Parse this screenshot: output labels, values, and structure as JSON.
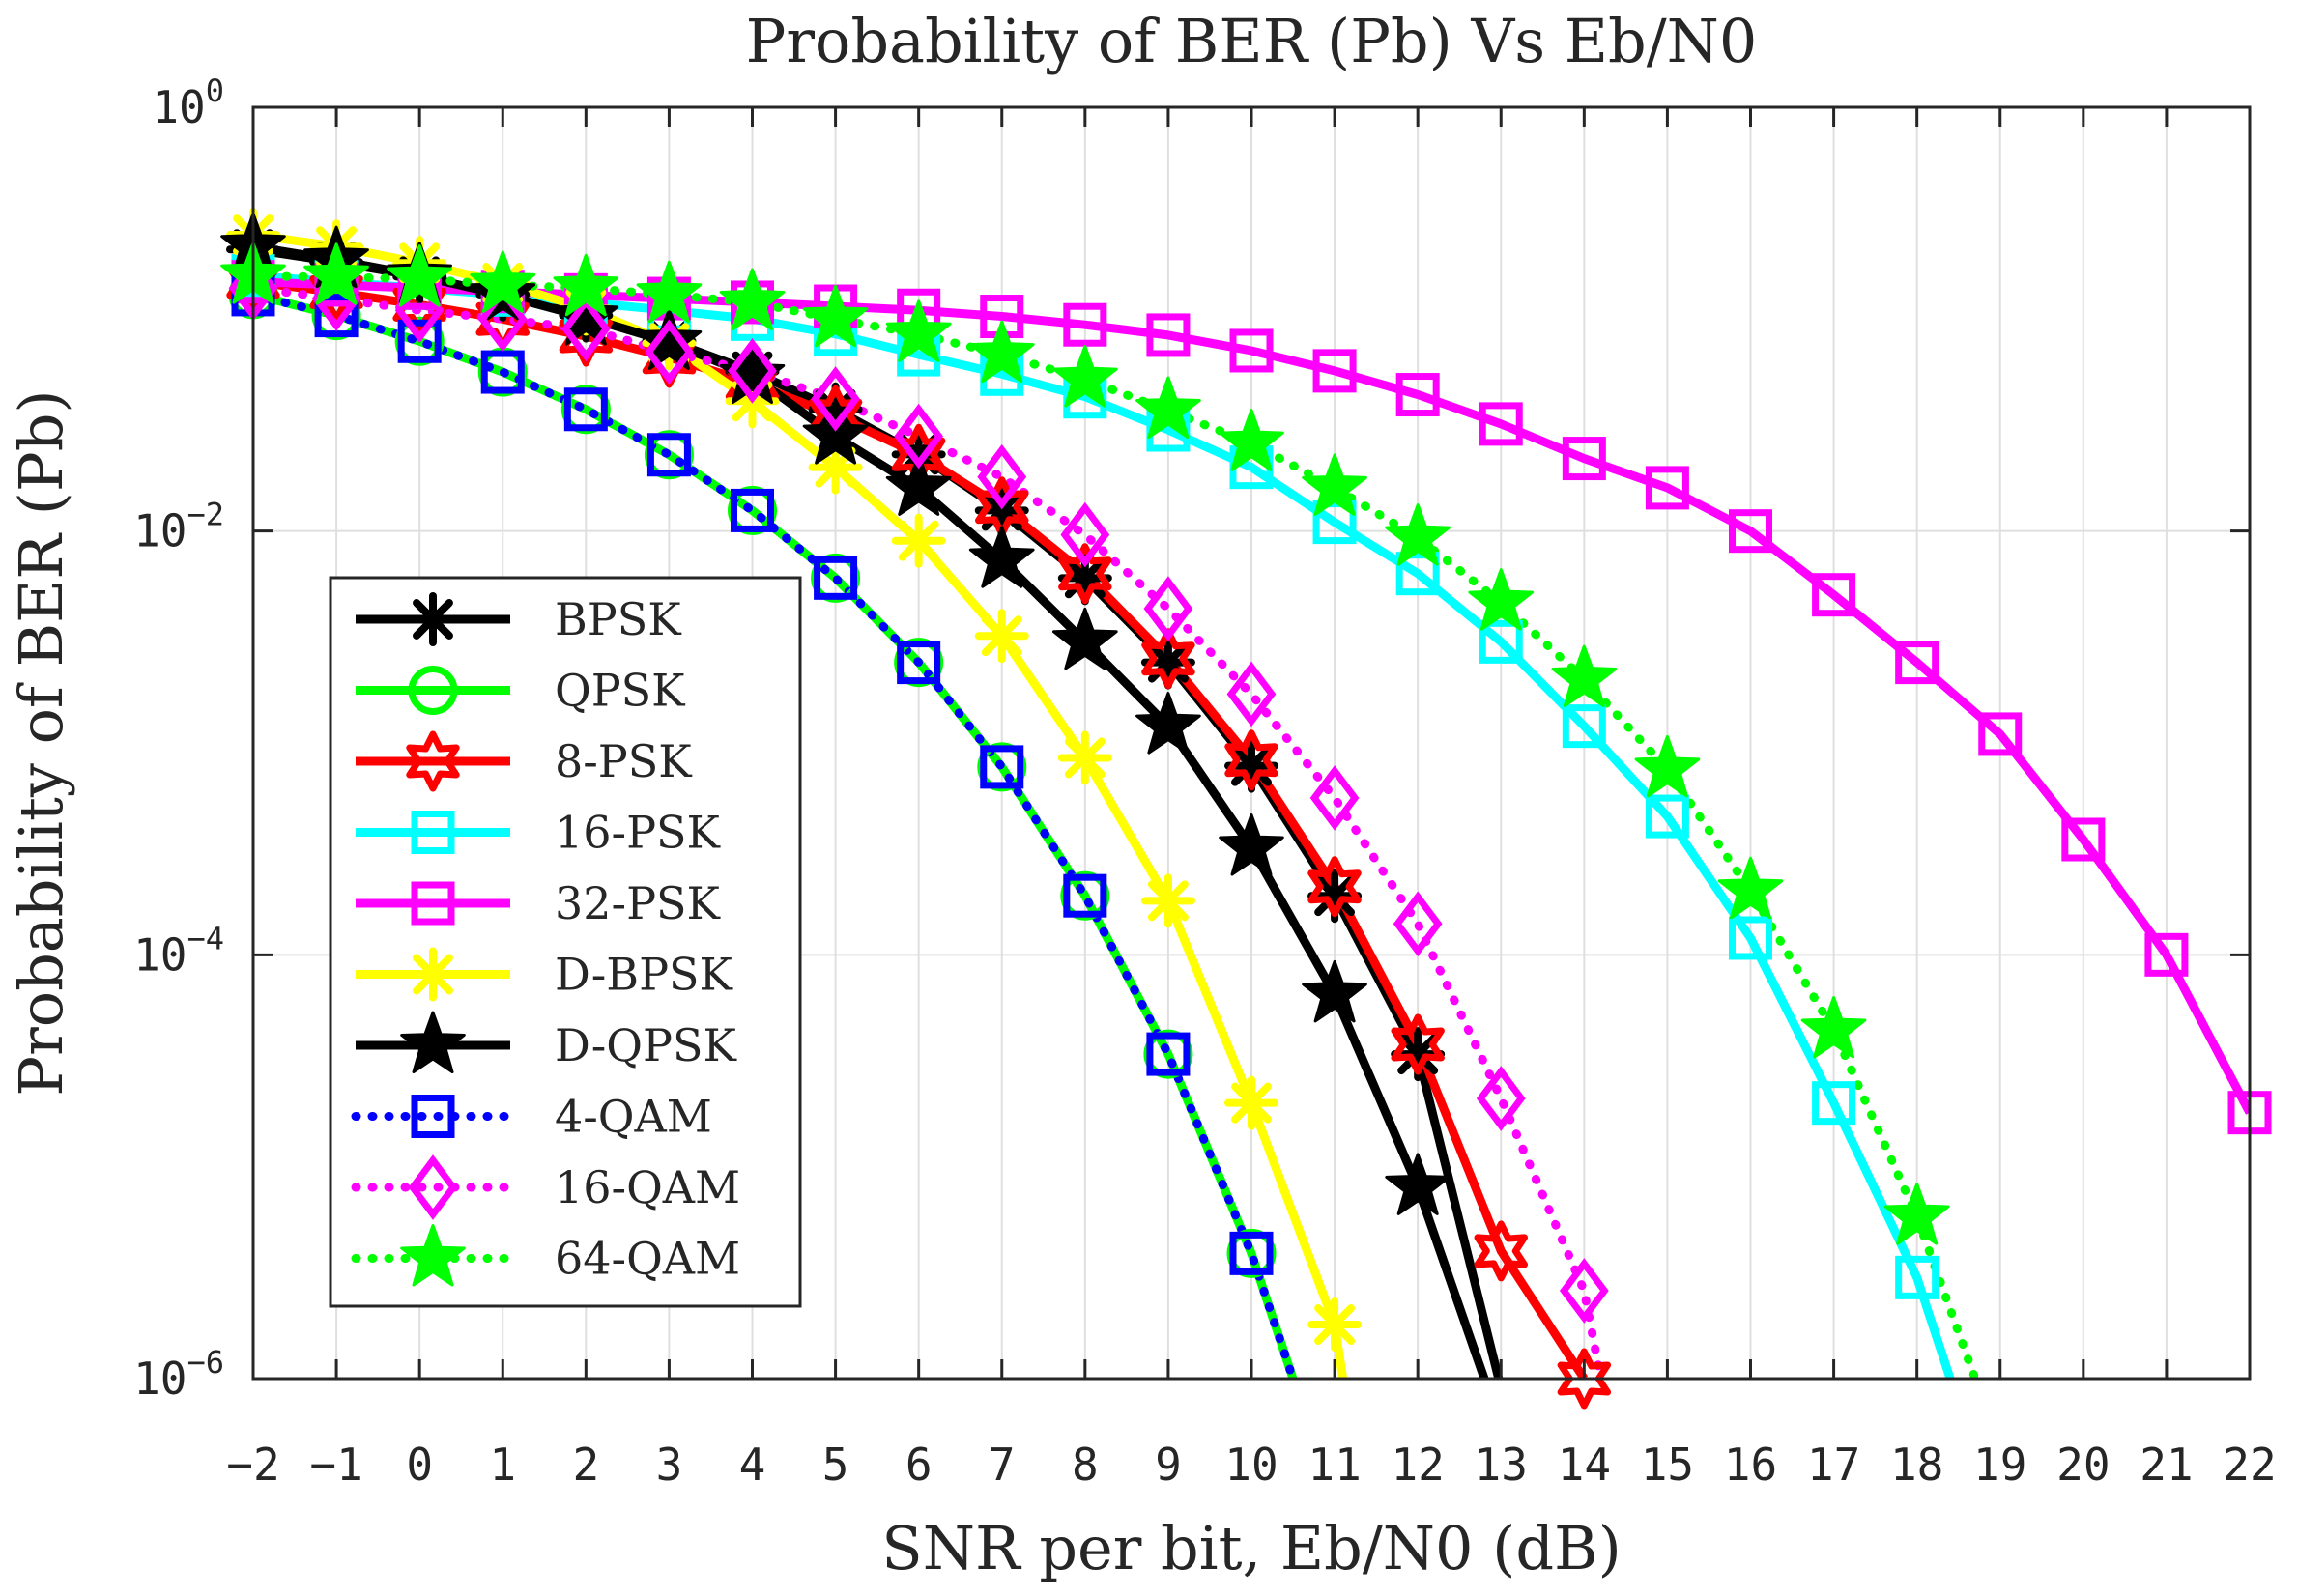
{
  "chart_data": {
    "type": "line",
    "title": "Probability of BER (Pb) Vs Eb/N0",
    "xlabel": "SNR per bit, Eb/N0 (dB)",
    "ylabel": "Probability of BER (Pb)",
    "xlim": [
      -2,
      22
    ],
    "ylim": [
      1e-06,
      1
    ],
    "yscale": "log",
    "grid": true,
    "xticks": [
      -2,
      -1,
      0,
      1,
      2,
      3,
      4,
      5,
      6,
      7,
      8,
      9,
      10,
      11,
      12,
      13,
      14,
      15,
      16,
      17,
      18,
      19,
      20,
      21,
      22
    ],
    "xtick_labels": [
      "−2",
      "−1",
      "0",
      "1",
      "2",
      "3",
      "4",
      "5",
      "6",
      "7",
      "8",
      "9",
      "10",
      "11",
      "12",
      "13",
      "14",
      "15",
      "16",
      "17",
      "18",
      "19",
      "20",
      "21",
      "22"
    ],
    "yticks": [
      {
        "base": "10",
        "exp": "0",
        "value": 1
      },
      {
        "base": "10",
        "exp": "-2",
        "value": 0.01
      },
      {
        "base": "10",
        "exp": "-4",
        "value": 0.0001
      },
      {
        "base": "10",
        "exp": "-6",
        "value": 1e-06
      }
    ],
    "legend_position": "lower-left",
    "series": [
      {
        "name": "BPSK",
        "color": "#000000",
        "line": "solid",
        "marker": "asterisk",
        "x": [
          -2,
          -1,
          0,
          1,
          2,
          3,
          4,
          5,
          6,
          7,
          8,
          9,
          10,
          11,
          12,
          13
        ],
        "y": [
          0.2132,
          0.1861,
          0.1587,
          0.1306,
          0.104,
          0.0789,
          0.0565,
          0.0375,
          0.023,
          0.0125,
          0.006,
          0.0024,
          0.00078,
          0.00019,
          3.4e-05,
          9e-07
        ]
      },
      {
        "name": "QPSK",
        "color": "#00ff00",
        "line": "solid",
        "marker": "circle",
        "x": [
          -2,
          -1,
          0,
          1,
          2,
          3,
          4,
          5,
          6,
          7,
          8,
          9,
          10,
          10.5
        ],
        "y": [
          0.1306,
          0.104,
          0.0786,
          0.0563,
          0.0375,
          0.0229,
          0.0125,
          0.006,
          0.0024,
          0.00077,
          0.00019,
          3.4e-05,
          3.9e-06,
          1e-06
        ]
      },
      {
        "name": "8-PSK",
        "color": "#ff0000",
        "line": "solid",
        "marker": "hexagram",
        "x": [
          -2,
          -1,
          0,
          1,
          2,
          3,
          4,
          5,
          6,
          7,
          8,
          9,
          10,
          11,
          12,
          13,
          14
        ],
        "y": [
          0.15,
          0.134,
          0.117,
          0.1,
          0.083,
          0.066,
          0.05,
          0.035,
          0.023,
          0.013,
          0.0063,
          0.0025,
          0.00083,
          0.00021,
          3.78e-05,
          4e-06,
          1e-06
        ]
      },
      {
        "name": "16-PSK",
        "color": "#00ffff",
        "line": "solid",
        "marker": "square",
        "x": [
          -2,
          -1,
          0,
          1,
          2,
          3,
          4,
          5,
          6,
          7,
          8,
          9,
          10,
          11,
          12,
          13,
          14,
          15,
          16,
          17,
          18,
          18.4
        ],
        "y": [
          0.16,
          0.15,
          0.14,
          0.13,
          0.12,
          0.11,
          0.1,
          0.085,
          0.068,
          0.055,
          0.043,
          0.03,
          0.02,
          0.011,
          0.0063,
          0.003,
          0.0012,
          0.00045,
          0.00012,
          2e-05,
          3e-06,
          1e-06
        ]
      },
      {
        "name": "32-PSK",
        "color": "#ff00ff",
        "line": "solid",
        "marker": "square",
        "x": [
          -2,
          -1,
          0,
          1,
          2,
          3,
          4,
          5,
          6,
          7,
          8,
          9,
          10,
          11,
          12,
          13,
          14,
          15,
          16,
          17,
          18,
          19,
          20,
          21,
          22
        ],
        "y": [
          0.15,
          0.145,
          0.14,
          0.135,
          0.13,
          0.125,
          0.12,
          0.115,
          0.11,
          0.103,
          0.094,
          0.084,
          0.071,
          0.057,
          0.044,
          0.032,
          0.022,
          0.016,
          0.01,
          0.005,
          0.0024,
          0.0011,
          0.00035,
          0.0001,
          1.8e-05
        ]
      },
      {
        "name": "D-BPSK",
        "color": "#ffff00",
        "line": "solid",
        "marker": "asterisk",
        "x": [
          -2,
          -1,
          0,
          1,
          2,
          3,
          4,
          5,
          6,
          7,
          8,
          9,
          10,
          11,
          11.1
        ],
        "y": [
          0.25,
          0.22,
          0.184,
          0.148,
          0.112,
          0.077,
          0.041,
          0.02,
          0.009,
          0.0032,
          0.00085,
          0.00018,
          2e-05,
          1.8e-06,
          1e-06
        ]
      },
      {
        "name": "D-QPSK",
        "color": "#000000",
        "line": "solid",
        "marker": "pentagram",
        "x": [
          -2,
          -1,
          0,
          1,
          2,
          3,
          4,
          5,
          6,
          7,
          8,
          9,
          10,
          11,
          12,
          12.8
        ],
        "y": [
          0.22,
          0.19,
          0.16,
          0.13,
          0.102,
          0.078,
          0.054,
          0.028,
          0.016,
          0.0073,
          0.003,
          0.0012,
          0.00032,
          6.5e-05,
          8e-06,
          1e-06
        ]
      },
      {
        "name": "4-QAM",
        "color": "#0000ff",
        "line": "dotted",
        "marker": "square",
        "x": [
          -2,
          -1,
          0,
          1,
          2,
          3,
          4,
          5,
          6,
          7,
          8,
          9,
          10,
          10.5
        ],
        "y": [
          0.1306,
          0.104,
          0.0786,
          0.0563,
          0.0375,
          0.0229,
          0.0125,
          0.006,
          0.0024,
          0.00077,
          0.00019,
          3.4e-05,
          3.9e-06,
          1e-06
        ]
      },
      {
        "name": "16-QAM",
        "color": "#ff00ff",
        "line": "dotted",
        "marker": "diamond",
        "x": [
          -2,
          -1,
          0,
          1,
          2,
          3,
          4,
          5,
          6,
          7,
          8,
          9,
          10,
          11,
          12,
          13,
          14,
          14.2
        ],
        "y": [
          0.14,
          0.125,
          0.11,
          0.1,
          0.09,
          0.07,
          0.057,
          0.042,
          0.028,
          0.018,
          0.0096,
          0.0043,
          0.0017,
          0.00055,
          0.00014,
          2.1e-05,
          2.6e-06,
          1e-06
        ]
      },
      {
        "name": "64-QAM",
        "color": "#00ff00",
        "line": "dotted",
        "marker": "pentagram",
        "x": [
          -2,
          -1,
          0,
          1,
          2,
          3,
          4,
          5,
          6,
          7,
          8,
          9,
          10,
          11,
          12,
          13,
          14,
          15,
          16,
          17,
          18,
          18.7
        ],
        "y": [
          0.16,
          0.158,
          0.155,
          0.145,
          0.14,
          0.13,
          0.12,
          0.1,
          0.085,
          0.068,
          0.052,
          0.037,
          0.026,
          0.016,
          0.0093,
          0.0046,
          0.002,
          0.00075,
          0.0002,
          4.4e-05,
          5.8e-06,
          1e-06
        ]
      }
    ]
  }
}
